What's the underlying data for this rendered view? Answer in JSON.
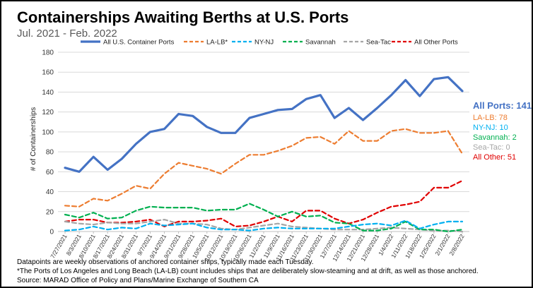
{
  "chart_data": {
    "type": "line",
    "title": "Containerships Awaiting Berths at U.S. Ports",
    "subtitle": "Jul. 2021 - Feb. 2022",
    "ylabel": "# of Containerships",
    "xlabel": "",
    "ylim": [
      0,
      180
    ],
    "yticks": [
      0,
      20,
      40,
      60,
      80,
      100,
      120,
      140,
      160,
      180
    ],
    "grid": true,
    "legend_position": "top",
    "x": [
      "7/27/2021",
      "8/3/2021",
      "8/10/2021",
      "8/17/2021",
      "8/24/2021",
      "8/31/2021",
      "9/7/2021",
      "9/14/2021",
      "9/21/2021",
      "9/28/2021",
      "10/5/2021",
      "10/12/2021",
      "10/19/2021",
      "10/26/2021",
      "11/2/2021",
      "11/9/2021",
      "11/16/2021",
      "11/23/2021",
      "11/30/2021",
      "12/7/2021",
      "12/14/2021",
      "12/21/2021",
      "12/28/2021",
      "1/4/2022",
      "1/11/2022",
      "1/18/2022",
      "1/25/2022",
      "2/1/2022",
      "2/8/2022"
    ],
    "series": [
      {
        "name": "All U.S. Container Ports",
        "color": "#4472C4",
        "dash": "solid",
        "values": [
          64,
          60,
          75,
          62,
          73,
          88,
          100,
          103,
          118,
          116,
          105,
          99,
          99,
          114,
          118,
          122,
          123,
          133,
          137,
          114,
          124,
          112,
          124,
          137,
          152,
          136,
          153,
          155,
          141
        ]
      },
      {
        "name": "LA-LB*",
        "color": "#ED7D31",
        "dash": "dashed",
        "values": [
          26,
          25,
          33,
          31,
          38,
          46,
          43,
          58,
          69,
          66,
          63,
          58,
          68,
          77,
          77,
          81,
          86,
          94,
          95,
          88,
          101,
          91,
          91,
          101,
          103,
          99,
          99,
          101,
          78
        ]
      },
      {
        "name": "NY-NJ",
        "color": "#00B0F0",
        "dash": "dashed",
        "values": [
          1,
          2,
          5,
          2,
          4,
          3,
          8,
          6,
          7,
          8,
          4,
          2,
          2,
          1,
          3,
          4,
          3,
          3,
          3,
          3,
          5,
          7,
          8,
          6,
          11,
          3,
          7,
          10,
          10
        ]
      },
      {
        "name": "Savannah",
        "color": "#00B050",
        "dash": "dashed",
        "values": [
          17,
          14,
          19,
          13,
          14,
          21,
          25,
          24,
          24,
          24,
          21,
          22,
          22,
          28,
          22,
          15,
          20,
          15,
          16,
          9,
          8,
          1,
          1,
          3,
          10,
          2,
          2,
          0,
          2
        ]
      },
      {
        "name": "Sea-Tac",
        "color": "#A6A6A6",
        "dash": "dashed",
        "values": [
          10,
          8,
          7,
          9,
          8,
          8,
          10,
          12,
          8,
          8,
          7,
          3,
          2,
          4,
          6,
          8,
          5,
          4,
          3,
          2,
          2,
          2,
          3,
          4,
          3,
          2,
          1,
          1,
          0
        ]
      },
      {
        "name": "All Other Ports",
        "color": "#E00000",
        "dash": "dashed",
        "values": [
          10,
          12,
          12,
          9,
          9,
          10,
          12,
          5,
          10,
          10,
          11,
          13,
          5,
          6,
          10,
          15,
          10,
          21,
          21,
          13,
          8,
          12,
          19,
          25,
          27,
          30,
          44,
          44,
          51
        ]
      }
    ],
    "end_labels": [
      {
        "text": "All Ports: 141",
        "color": "#4472C4"
      },
      {
        "text": "LA-LB: 78",
        "color": "#ED7D31"
      },
      {
        "text": "NY-NJ: 10",
        "color": "#00B0F0"
      },
      {
        "text": "Savannah: 2",
        "color": "#00B050"
      },
      {
        "text": "Sea-Tac: 0",
        "color": "#A6A6A6"
      },
      {
        "text": "All Other: 51",
        "color": "#E00000"
      }
    ],
    "footnotes": [
      "Datapoints are weekly observations of anchored container ships, typically made each Tuesday.",
      "*The Ports of Los Angeles and Long Beach (LA-LB) count includes ships that are deliberately slow-steaming and at drift, as well as those anchored.",
      "Source: MARAD Office of Policy and Plans/Marine Exchange of Southern CA"
    ]
  }
}
